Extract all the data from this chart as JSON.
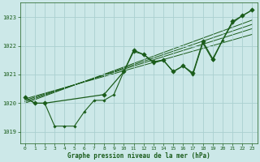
{
  "title": "Graphe pression niveau de la mer (hPa)",
  "background_color": "#cce8e8",
  "grid_color": "#aad0d0",
  "line_color": "#1a5c1a",
  "xlim": [
    -0.5,
    23.5
  ],
  "ylim": [
    1018.6,
    1023.5
  ],
  "yticks": [
    1019,
    1020,
    1021,
    1022,
    1023
  ],
  "xticks": [
    0,
    1,
    2,
    3,
    4,
    5,
    6,
    7,
    8,
    9,
    10,
    11,
    12,
    13,
    14,
    15,
    16,
    17,
    18,
    19,
    20,
    21,
    22,
    23
  ],
  "series_main": [
    1020.2,
    1020.0,
    1020.0,
    1019.2,
    1019.2,
    1019.2,
    1019.7,
    1020.1,
    1020.1,
    1020.3,
    1021.1,
    1021.8,
    1021.7,
    1021.4,
    1021.5,
    1021.1,
    1021.3,
    1021.0,
    1022.1,
    1021.5,
    1022.2,
    1022.8,
    1023.05,
    1023.25
  ],
  "series_sparse_x": [
    0,
    1,
    2,
    8,
    10,
    11,
    12,
    13,
    14,
    15,
    16,
    17,
    18,
    19,
    21,
    22,
    23
  ],
  "series_sparse_y": [
    1020.2,
    1020.0,
    1020.0,
    1020.3,
    1021.1,
    1021.85,
    1021.7,
    1021.45,
    1021.5,
    1021.1,
    1021.3,
    1021.05,
    1022.15,
    1021.55,
    1022.85,
    1023.05,
    1023.25
  ],
  "trend_lines": [
    {
      "x": [
        0,
        23
      ],
      "y": [
        1020.15,
        1022.4
      ]
    },
    {
      "x": [
        0,
        23
      ],
      "y": [
        1020.1,
        1022.6
      ]
    },
    {
      "x": [
        0,
        23
      ],
      "y": [
        1020.05,
        1022.75
      ]
    },
    {
      "x": [
        0,
        23
      ],
      "y": [
        1020.0,
        1022.9
      ]
    }
  ]
}
